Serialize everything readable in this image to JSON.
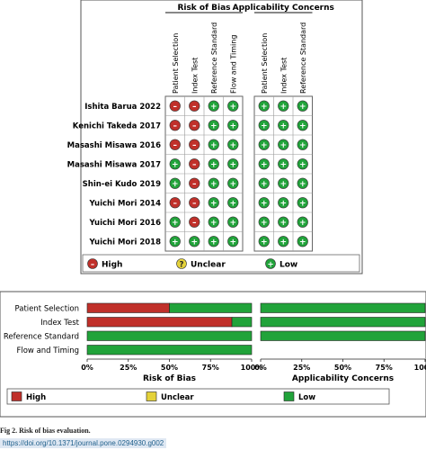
{
  "figure_caption": "Fig 2. Risk of bias evaluation.",
  "doi_text": "https://doi.org/10.1371/journal.pone.0294930.g002",
  "colors": {
    "high": "#c0302a",
    "unclear": "#e4d23a",
    "low": "#21a33a",
    "grid_border": "#666666"
  },
  "chart_data": [
    {
      "type": "table",
      "group_headers": [
        "Risk of Bias",
        "Applicability Concerns"
      ],
      "risk_of_bias_domains": [
        "Patient Selection",
        "Index Test",
        "Reference Standard",
        "Flow and Timing"
      ],
      "applicability_domains": [
        "Patient Selection",
        "Index Test",
        "Reference Standard"
      ],
      "studies": [
        {
          "name": "Ishita Barua 2022",
          "risk_of_bias": [
            "high",
            "high",
            "low",
            "low"
          ],
          "applicability": [
            "low",
            "low",
            "low"
          ]
        },
        {
          "name": "Kenichi Takeda 2017",
          "risk_of_bias": [
            "high",
            "high",
            "low",
            "low"
          ],
          "applicability": [
            "low",
            "low",
            "low"
          ]
        },
        {
          "name": "Masashi Misawa 2016",
          "risk_of_bias": [
            "high",
            "high",
            "low",
            "low"
          ],
          "applicability": [
            "low",
            "low",
            "low"
          ]
        },
        {
          "name": "Masashi Misawa 2017",
          "risk_of_bias": [
            "low",
            "high",
            "low",
            "low"
          ],
          "applicability": [
            "low",
            "low",
            "low"
          ]
        },
        {
          "name": "Shin-ei Kudo 2019",
          "risk_of_bias": [
            "low",
            "high",
            "low",
            "low"
          ],
          "applicability": [
            "low",
            "low",
            "low"
          ]
        },
        {
          "name": "Yuichi Mori 2014",
          "risk_of_bias": [
            "high",
            "high",
            "low",
            "low"
          ],
          "applicability": [
            "low",
            "low",
            "low"
          ]
        },
        {
          "name": "Yuichi Mori 2016",
          "risk_of_bias": [
            "low",
            "high",
            "low",
            "low"
          ],
          "applicability": [
            "low",
            "low",
            "low"
          ]
        },
        {
          "name": "Yuichi Mori 2018",
          "risk_of_bias": [
            "low",
            "low",
            "low",
            "low"
          ],
          "applicability": [
            "low",
            "low",
            "low"
          ]
        }
      ],
      "symbols": {
        "high": "–",
        "unclear": "?",
        "low": "+"
      },
      "legend": [
        {
          "key": "high",
          "label": "High"
        },
        {
          "key": "unclear",
          "label": "Unclear"
        },
        {
          "key": "low",
          "label": "Low"
        }
      ]
    },
    {
      "type": "bar",
      "orientation": "horizontal",
      "stacked": true,
      "categories": [
        "Patient Selection",
        "Index Test",
        "Reference Standard",
        "Flow and Timing"
      ],
      "panels": [
        {
          "xlabel": "Risk of Bias",
          "series": [
            {
              "name": "High",
              "values": [
                50,
                88,
                0,
                0
              ]
            },
            {
              "name": "Unclear",
              "values": [
                0,
                0,
                0,
                0
              ]
            },
            {
              "name": "Low",
              "values": [
                50,
                12,
                100,
                100
              ]
            }
          ]
        },
        {
          "xlabel": "Applicability Concerns",
          "series": [
            {
              "name": "High",
              "values": [
                0,
                0,
                0,
                null
              ]
            },
            {
              "name": "Unclear",
              "values": [
                0,
                0,
                0,
                null
              ]
            },
            {
              "name": "Low",
              "values": [
                100,
                100,
                100,
                null
              ]
            }
          ]
        }
      ],
      "xlim": [
        0,
        100
      ],
      "xticks": [
        "0%",
        "25%",
        "50%",
        "75%",
        "100%"
      ],
      "legend": [
        "High",
        "Unclear",
        "Low"
      ],
      "legend_position": "bottom"
    }
  ]
}
